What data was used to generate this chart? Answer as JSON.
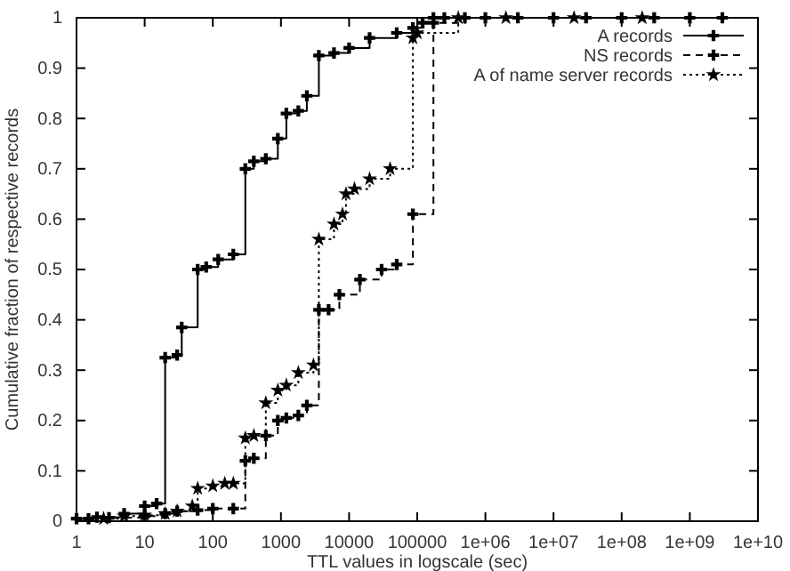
{
  "chart_data": {
    "type": "step",
    "xlabel": "TTL values in logscale (sec)",
    "ylabel": "Cumulative fraction of respective records",
    "log": "x",
    "xlim": [
      1,
      10000000000
    ],
    "xticks": [
      1,
      10,
      100,
      1000,
      10000,
      100000,
      {
        "value": 1000000,
        "label": "1e+06"
      },
      {
        "value": 10000000,
        "label": "1e+07"
      },
      {
        "value": 100000000,
        "label": "1e+08"
      },
      {
        "value": 1000000000,
        "label": "1e+09"
      },
      {
        "value": 10000000000,
        "label": "1e+10"
      }
    ],
    "ylim": [
      0,
      1
    ],
    "yticks": [
      0,
      0.1,
      0.2,
      0.3,
      0.4,
      0.5,
      0.6,
      0.7,
      0.8,
      0.9,
      1
    ],
    "grid": false,
    "legend": "top right",
    "series": [
      {
        "name": "A records",
        "color": "#000000",
        "marker": "cross",
        "line_style": "solid",
        "x": [
          1,
          2,
          5,
          10,
          15,
          20,
          30,
          35,
          60,
          80,
          120,
          200,
          300,
          400,
          600,
          900,
          1200,
          1800,
          2400,
          3600,
          6000,
          10000,
          20000,
          50000,
          86400,
          120000,
          172800,
          250000,
          1000000,
          10000000,
          100000000,
          1000000000
        ],
        "values": [
          0.005,
          0.008,
          0.015,
          0.03,
          0.035,
          0.325,
          0.33,
          0.385,
          0.5,
          0.505,
          0.52,
          0.53,
          0.7,
          0.715,
          0.72,
          0.76,
          0.81,
          0.815,
          0.845,
          0.925,
          0.93,
          0.94,
          0.96,
          0.97,
          0.98,
          0.99,
          1,
          1,
          1,
          1,
          1,
          1
        ]
      },
      {
        "name": "NS records",
        "color": "#000000",
        "marker": "cross",
        "line_style": "dashed",
        "x": [
          1.5,
          3,
          10,
          20,
          30,
          60,
          100,
          200,
          300,
          400,
          600,
          900,
          1200,
          1800,
          2400,
          3600,
          5000,
          7200,
          14400,
          30000,
          50000,
          86400,
          172800,
          500000,
          3000000,
          30000000,
          300000000,
          3000000000
        ],
        "values": [
          0.005,
          0.007,
          0.01,
          0.015,
          0.02,
          0.022,
          0.025,
          0.025,
          0.12,
          0.125,
          0.17,
          0.2,
          0.205,
          0.21,
          0.23,
          0.42,
          0.42,
          0.45,
          0.48,
          0.5,
          0.51,
          0.61,
          0.99,
          1,
          1,
          1,
          1,
          1
        ]
      },
      {
        "name": "A of name server records",
        "color": "#000000",
        "marker": "star",
        "line_style": "dotted",
        "x": [
          2.5,
          5,
          10,
          20,
          30,
          50,
          60,
          100,
          150,
          200,
          300,
          400,
          600,
          900,
          1200,
          1800,
          3000,
          3600,
          6000,
          8000,
          9000,
          12000,
          20000,
          40000,
          86400,
          100000,
          400000,
          2000000,
          20000000,
          200000000
        ],
        "values": [
          0.005,
          0.01,
          0.012,
          0.015,
          0.02,
          0.03,
          0.065,
          0.07,
          0.075,
          0.075,
          0.165,
          0.17,
          0.235,
          0.26,
          0.27,
          0.295,
          0.31,
          0.56,
          0.59,
          0.61,
          0.65,
          0.66,
          0.68,
          0.7,
          0.96,
          0.97,
          1,
          1,
          1,
          1
        ]
      }
    ]
  }
}
